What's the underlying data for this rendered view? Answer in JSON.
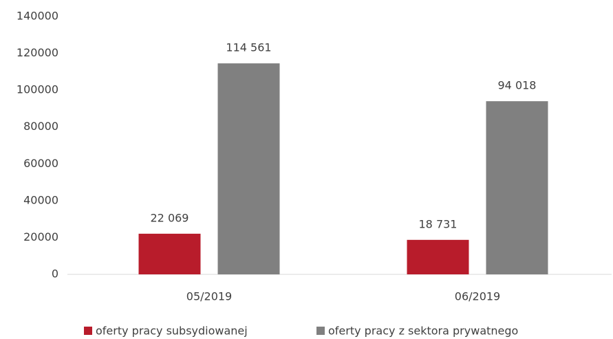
{
  "chart_data": {
    "type": "bar",
    "categories": [
      "05/2019",
      "06/2019"
    ],
    "series": [
      {
        "name": "oferty pracy subsydiowanej",
        "color": "#b81c2b",
        "values": [
          22069,
          18731
        ],
        "value_labels": [
          "22 069",
          "18 731"
        ]
      },
      {
        "name": "oferty pracy z sektora prywatnego",
        "color": "#808080",
        "values": [
          114561,
          94018
        ],
        "value_labels": [
          "114 561",
          "94 018"
        ]
      }
    ],
    "ylim": [
      0,
      140000
    ],
    "yticks": [
      0,
      20000,
      40000,
      60000,
      80000,
      100000,
      120000,
      140000
    ],
    "grid": false,
    "legend": "bottom"
  }
}
